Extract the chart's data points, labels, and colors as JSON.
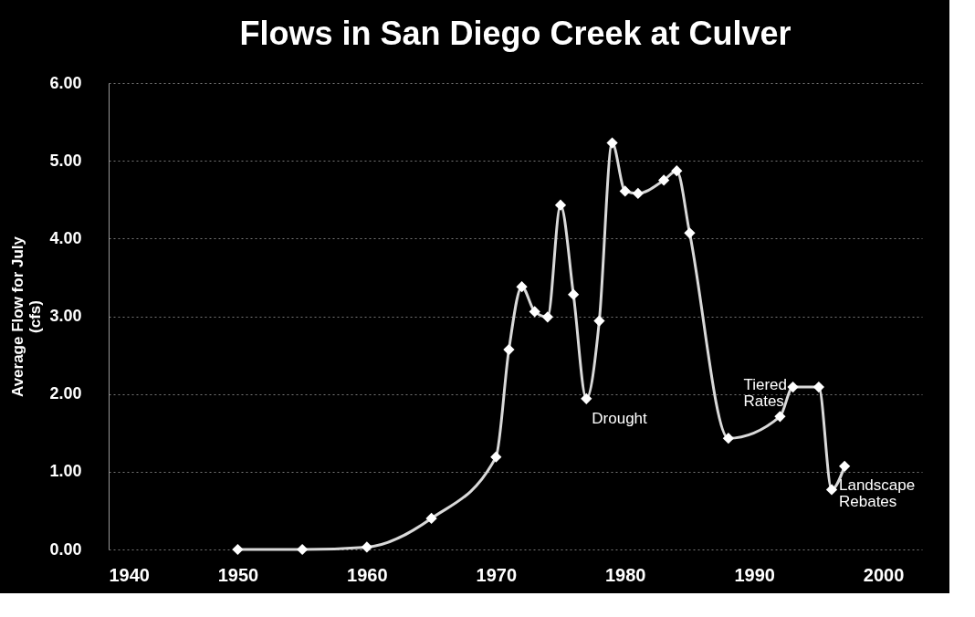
{
  "chart_data": {
    "type": "line",
    "title": "Flows in San Diego Creek at Culver",
    "ylabel": "Average Flow for July\n(cfs)",
    "x": [
      1950,
      1955,
      1960,
      1965,
      1970,
      1971,
      1972,
      1973,
      1974,
      1975,
      1976,
      1977,
      1978,
      1979,
      1980,
      1981,
      1983,
      1984,
      1985,
      1988,
      1992,
      1993,
      1995,
      1996,
      1997
    ],
    "series": [
      {
        "color": "#d9d9d9",
        "values": [
          0,
          0,
          0.03,
          0.4,
          1.19,
          2.57,
          3.38,
          3.06,
          2.99,
          4.43,
          3.28,
          1.94,
          2.94,
          5.23,
          4.61,
          4.58,
          4.75,
          4.87,
          4.07,
          1.43,
          1.71,
          2.09,
          2.09,
          0.77,
          1.07
        ]
      }
    ],
    "xlim": [
      1940,
      2003
    ],
    "xticks": [
      1940,
      1950,
      1960,
      1970,
      1980,
      1990,
      2000
    ],
    "ylim": [
      0,
      6
    ],
    "yticks": [
      {
        "value": 0,
        "label": "0.00"
      },
      {
        "value": 1,
        "label": "1.00"
      },
      {
        "value": 2,
        "label": "2.00"
      },
      {
        "value": 3,
        "label": "3.00"
      },
      {
        "value": 4,
        "label": "4.00"
      },
      {
        "value": 5,
        "label": "5.00"
      },
      {
        "value": 6,
        "label": "6.00"
      }
    ],
    "grid": "y",
    "marker": "diamond",
    "line_style": "solid",
    "annotations": [
      {
        "text": "Drought",
        "x": 1977,
        "y": 1.94
      },
      {
        "text": "Tiered Rates",
        "x": 1992,
        "y": 1.71
      },
      {
        "text": "Landscape Rebates",
        "x": 1996,
        "y": 0.77
      }
    ]
  }
}
